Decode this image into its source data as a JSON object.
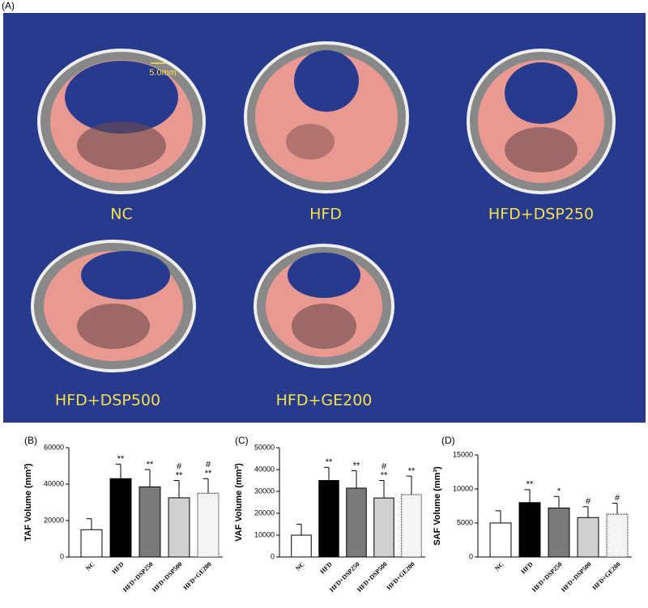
{
  "panel_a": {
    "label": "(A)",
    "scale_bar": "5.0mm",
    "images": [
      "NC",
      "HFD",
      "HFD+DSP250",
      "HFD+DSP500",
      "HFD+GE200"
    ]
  },
  "chart_data": [
    {
      "type": "bar",
      "panel": "(B)",
      "y_label": "TAF Volume (mm³)",
      "categories": [
        "NC",
        "HFD",
        "HFD+DSP250",
        "HFD+DSP500",
        "HFD+GE200"
      ],
      "values": [
        15000,
        43000,
        38500,
        32500,
        35000
      ],
      "errors": [
        6000,
        8000,
        9500,
        9500,
        8000
      ],
      "annotations": [
        null,
        [
          "**"
        ],
        [
          "**"
        ],
        [
          "#",
          "**"
        ],
        [
          "#",
          "**"
        ]
      ],
      "colors": [
        "#ffffff",
        "#000000",
        "#7a7a7a",
        "#d0d0d0",
        "#f4f4f4"
      ],
      "ylim": [
        0,
        60000
      ],
      "yticks": [
        0,
        20000,
        40000,
        60000
      ]
    },
    {
      "type": "bar",
      "panel": "(C)",
      "y_label": "VAF Volume (mm³)",
      "categories": [
        "NC",
        "HFD",
        "HFD+DSP250",
        "HFD+DSP500",
        "HFD+GE200"
      ],
      "values": [
        10000,
        35000,
        31500,
        27000,
        28500
      ],
      "errors": [
        5000,
        6000,
        8000,
        8000,
        8500
      ],
      "annotations": [
        null,
        [
          "**"
        ],
        [
          "**"
        ],
        [
          "#",
          "**"
        ],
        [
          "**"
        ]
      ],
      "colors": [
        "#ffffff",
        "#000000",
        "#7a7a7a",
        "#d0d0d0",
        "#f4f4f4"
      ],
      "ylim": [
        0,
        50000
      ],
      "yticks": [
        0,
        10000,
        20000,
        30000,
        40000,
        50000
      ]
    },
    {
      "type": "bar",
      "panel": "(D)",
      "y_label": "SAF Volume (mm³)",
      "categories": [
        "NC",
        "HFD",
        "HFD+DSP250",
        "HFD+DSP500",
        "HFD+GE200"
      ],
      "values": [
        5000,
        8000,
        7200,
        5800,
        6300
      ],
      "errors": [
        1800,
        1900,
        1700,
        1600,
        1600
      ],
      "annotations": [
        null,
        [
          "**"
        ],
        [
          "*"
        ],
        [
          "#"
        ],
        [
          "#"
        ]
      ],
      "colors": [
        "#ffffff",
        "#000000",
        "#7a7a7a",
        "#d0d0d0",
        "#f4f4f4"
      ],
      "ylim": [
        0,
        15000
      ],
      "yticks": [
        0,
        5000,
        10000,
        15000
      ]
    }
  ]
}
